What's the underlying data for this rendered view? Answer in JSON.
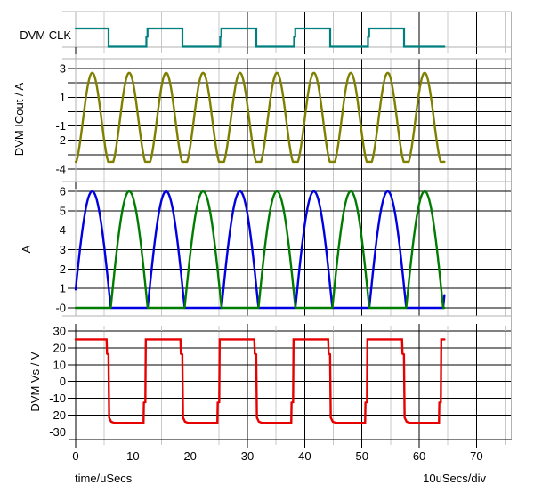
{
  "colors": {
    "background": "#ffffff",
    "grid_major": "#000000",
    "grid_minor": "#c8c8c8",
    "panel_border": "#b2b2b2",
    "axis": "#000000",
    "text": "#000000"
  },
  "x_axis": {
    "title": "time/uSecs",
    "scale_label": "10uSecs/div",
    "major_tick_values": [
      0,
      10,
      20,
      30,
      40,
      50,
      60,
      70
    ],
    "major_tick_labels": [
      "0",
      "10",
      "20",
      "30",
      "40",
      "50",
      "60",
      "70"
    ],
    "minor_tick_values": [
      5,
      15,
      25,
      35,
      45,
      55,
      65,
      75
    ],
    "range_us": [
      0,
      76
    ]
  },
  "chart_data": [
    {
      "type": "line",
      "title": "DVM CLK",
      "color": "#007f7f",
      "signal_kind": "digital_clock",
      "levels": {
        "low": 0,
        "high": 1
      },
      "edges": {
        "initial": "high",
        "fall_times_us": [
          5.75,
          18.65,
          31.55,
          44.45,
          57.35
        ],
        "rise_times_us": [
          12.35,
          25.25,
          38.15,
          51.05
        ],
        "end_us": 64.4
      }
    },
    {
      "type": "line",
      "title": "DVM ICout / A",
      "color": "#7f7f00",
      "ylim": [
        -4,
        3
      ],
      "grid_values": [
        3,
        2,
        1,
        0,
        -1,
        -2,
        -3,
        -4
      ],
      "ytick_values": [
        3,
        1,
        -1,
        -2,
        -4
      ],
      "ytick_labels": [
        "3",
        "1",
        "-1",
        "-2",
        "-4"
      ],
      "waveform": {
        "shape": "clipped_cosine",
        "midline": -0.55,
        "amplitude": 3.25,
        "period_us": 6.45,
        "first_peak_us": 2.9,
        "peak_value": 2.7,
        "clip_min": -3.5,
        "end_us": 64.4
      }
    },
    {
      "type": "line",
      "title": "A",
      "ylim": [
        0,
        6
      ],
      "grid_values": [
        6,
        5,
        4,
        3,
        2,
        1,
        0
      ],
      "ytick_values": [
        6,
        5,
        4,
        3,
        2,
        1,
        0
      ],
      "ytick_labels": [
        "6",
        "5",
        "4",
        "3",
        "2",
        "1",
        "-0"
      ],
      "series": [
        {
          "color": "#0000e0",
          "shape": "half_sine_humps",
          "peak_value": 6,
          "hump_width_us": 6.45,
          "period_us": 12.9,
          "first_peak_us": 2.9,
          "end_us": 64.4
        },
        {
          "color": "#007d00",
          "shape": "half_sine_humps",
          "peak_value": 6,
          "hump_width_us": 6.45,
          "period_us": 12.9,
          "first_peak_us": 9.35,
          "end_us": 64.4
        }
      ]
    },
    {
      "type": "line",
      "title": "DVM Vs / V",
      "color": "#e60000",
      "ylim": [
        -30,
        30
      ],
      "grid_values": [
        30,
        20,
        10,
        0,
        -10,
        -20,
        -30
      ],
      "ytick_values": [
        30,
        20,
        10,
        0,
        -10,
        -20,
        -30
      ],
      "ytick_labels": [
        "30",
        "20",
        "10",
        "0",
        "-10",
        "-20",
        "-30"
      ],
      "waveform": {
        "shape": "square",
        "initial": "high",
        "high_v": 25,
        "low_v": -24.6,
        "fall_shoulder_v": 16.5,
        "rise_shoulder_v": -12.6,
        "fall_times_us": [
          5.4,
          18.3,
          31.2,
          44.1,
          57.0
        ],
        "rise_times_us": [
          11.85,
          24.75,
          37.65,
          50.55,
          63.45
        ],
        "end_us": 64.4
      }
    }
  ]
}
